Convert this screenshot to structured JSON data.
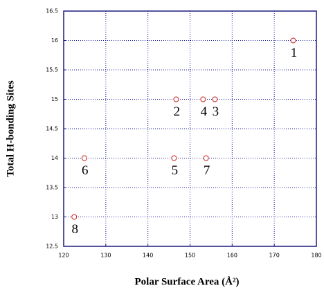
{
  "chart_data": {
    "type": "scatter",
    "xlabel": "Polar Surface Area (Å²)",
    "ylabel": "Total H-bonding Sites",
    "x": [
      174.5,
      146.7,
      155.9,
      153.1,
      146.2,
      124.9,
      153.8,
      122.5
    ],
    "values": [
      16,
      15,
      15,
      15,
      14,
      14,
      14,
      13
    ],
    "point_labels": [
      "1",
      "2",
      "3",
      "4",
      "5",
      "6",
      "7",
      "8"
    ],
    "color": "#cc2222",
    "xlim": [
      120,
      180
    ],
    "xticks": [
      120,
      130,
      140,
      150,
      160,
      170,
      180
    ],
    "ylim": [
      12.5,
      16.5
    ],
    "yticks": [
      12.5,
      13,
      13.5,
      14,
      14.5,
      15,
      15.5,
      16,
      16.5
    ],
    "grid": true
  }
}
